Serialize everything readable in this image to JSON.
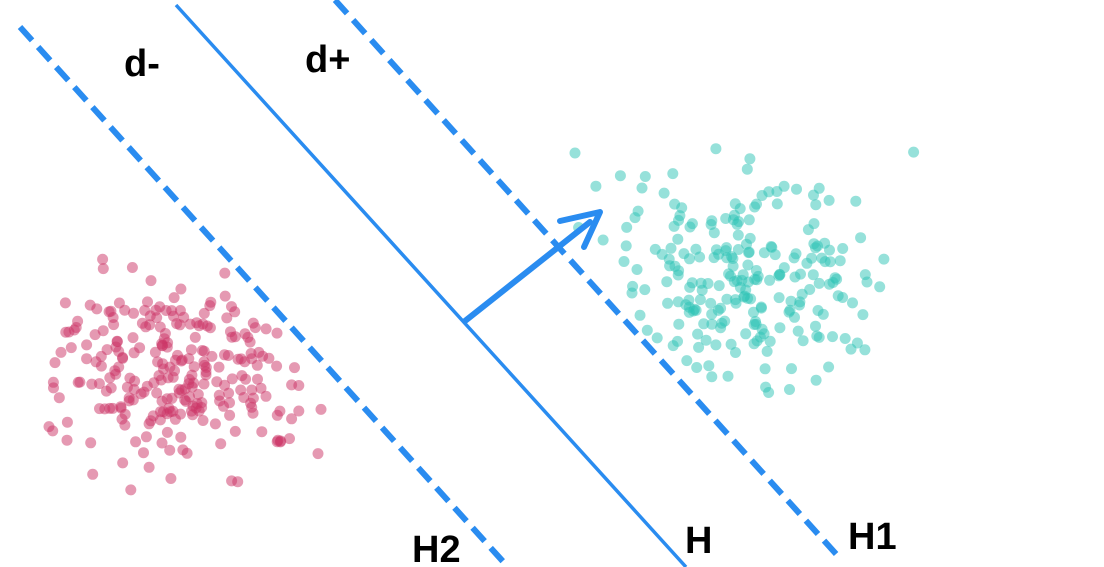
{
  "labels": {
    "d_minus": "d-",
    "d_plus": "d+",
    "h2": "H2",
    "h": "H",
    "h1": "H1"
  },
  "colors": {
    "line": "#2a8cf0",
    "class_negative": "#cc3366",
    "class_positive": "#2ec4b6",
    "background": "#ffffff"
  },
  "points": {
    "negative_count_approx": 260,
    "positive_count_approx": 230
  }
}
